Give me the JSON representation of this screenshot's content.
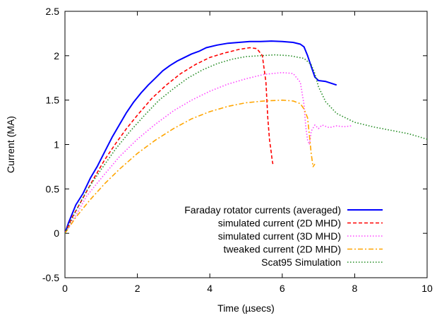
{
  "chart_data": {
    "type": "line",
    "xlabel": "Time (µsecs)",
    "ylabel": "Current (MA)",
    "xlim": [
      0,
      10
    ],
    "ylim": [
      -0.5,
      2.5
    ],
    "xticks": [
      0,
      2,
      4,
      6,
      8,
      10
    ],
    "xtick_labels": [
      "0",
      "2",
      "4",
      "6",
      "8",
      "10"
    ],
    "yticks": [
      -0.5,
      0,
      0.5,
      1,
      1.5,
      2,
      2.5
    ],
    "ytick_labels": [
      "-0.5",
      "0",
      "0.5",
      "1",
      "1.5",
      "2",
      "2.5"
    ],
    "grid": false,
    "legend_position": "lower-right",
    "series": [
      {
        "name": "Faraday rotator currents (averaged)",
        "color": "#0000ff",
        "dash": "solid",
        "x": [
          0.0,
          0.1,
          0.2,
          0.3,
          0.5,
          0.7,
          0.9,
          1.1,
          1.3,
          1.5,
          1.7,
          1.9,
          2.1,
          2.3,
          2.5,
          2.7,
          2.9,
          3.1,
          3.3,
          3.5,
          3.7,
          3.9,
          4.2,
          4.5,
          4.8,
          5.1,
          5.4,
          5.7,
          6.0,
          6.3,
          6.5,
          6.6,
          6.7,
          6.8,
          6.9,
          7.0,
          7.2,
          7.5
        ],
        "y": [
          0.0,
          0.12,
          0.22,
          0.32,
          0.45,
          0.62,
          0.76,
          0.92,
          1.08,
          1.22,
          1.36,
          1.48,
          1.58,
          1.67,
          1.75,
          1.83,
          1.89,
          1.94,
          1.98,
          2.02,
          2.05,
          2.09,
          2.12,
          2.14,
          2.15,
          2.16,
          2.16,
          2.165,
          2.16,
          2.15,
          2.13,
          2.1,
          2.0,
          1.88,
          1.76,
          1.72,
          1.71,
          1.67
        ]
      },
      {
        "name": "simulated current (2D MHD)",
        "color": "#ff0000",
        "dash": "dashed",
        "x": [
          0.0,
          0.2,
          0.5,
          0.8,
          1.1,
          1.4,
          1.7,
          2.0,
          2.4,
          2.8,
          3.2,
          3.6,
          4.0,
          4.4,
          4.8,
          5.1,
          5.3,
          5.45,
          5.55,
          5.6,
          5.65,
          5.7,
          5.72,
          5.74
        ],
        "y": [
          0.0,
          0.18,
          0.4,
          0.62,
          0.83,
          1.01,
          1.18,
          1.33,
          1.52,
          1.67,
          1.8,
          1.9,
          1.98,
          2.03,
          2.07,
          2.09,
          2.08,
          2.0,
          1.7,
          1.3,
          1.05,
          0.9,
          0.83,
          0.78
        ]
      },
      {
        "name": "simulated current (3D MHD)",
        "color": "#ff44ff",
        "dash": "dotted",
        "x": [
          0.0,
          0.3,
          0.6,
          1.0,
          1.5,
          2.0,
          2.5,
          3.0,
          3.5,
          4.0,
          4.5,
          5.0,
          5.5,
          6.0,
          6.3,
          6.5,
          6.6,
          6.65,
          6.7,
          6.75,
          6.8,
          6.9,
          7.0,
          7.1,
          7.3,
          7.5,
          7.7,
          7.9
        ],
        "y": [
          0.0,
          0.2,
          0.42,
          0.62,
          0.86,
          1.06,
          1.23,
          1.38,
          1.5,
          1.6,
          1.68,
          1.74,
          1.79,
          1.81,
          1.8,
          1.7,
          1.45,
          1.2,
          1.05,
          1.0,
          1.15,
          1.22,
          1.18,
          1.22,
          1.19,
          1.21,
          1.2,
          1.21
        ]
      },
      {
        "name": "tweaked   current (2D MHD)",
        "color": "#ffa500",
        "dash": "dashdot",
        "x": [
          0.0,
          0.3,
          0.7,
          1.1,
          1.5,
          2.0,
          2.5,
          3.0,
          3.5,
          4.0,
          4.5,
          5.0,
          5.5,
          6.0,
          6.3,
          6.5,
          6.6,
          6.7,
          6.75,
          6.8,
          6.85,
          6.9
        ],
        "y": [
          0.0,
          0.18,
          0.38,
          0.56,
          0.72,
          0.9,
          1.05,
          1.18,
          1.29,
          1.37,
          1.43,
          1.47,
          1.49,
          1.5,
          1.49,
          1.46,
          1.4,
          1.3,
          1.1,
          0.9,
          0.75,
          0.78
        ]
      },
      {
        "name": "Scat95 Simulation",
        "color": "#228b22",
        "dash": "dotted",
        "x": [
          0.0,
          0.3,
          0.6,
          1.0,
          1.4,
          1.8,
          2.2,
          2.6,
          3.0,
          3.4,
          3.8,
          4.2,
          4.6,
          5.0,
          5.4,
          5.8,
          6.2,
          6.6,
          6.8,
          6.9,
          7.0,
          7.2,
          7.5,
          8.0,
          8.5,
          9.0,
          9.5,
          10.0
        ],
        "y": [
          0.0,
          0.25,
          0.48,
          0.72,
          0.95,
          1.15,
          1.33,
          1.5,
          1.63,
          1.75,
          1.84,
          1.91,
          1.96,
          1.99,
          2.0,
          2.01,
          2.0,
          1.97,
          1.9,
          1.8,
          1.65,
          1.48,
          1.35,
          1.25,
          1.2,
          1.16,
          1.12,
          1.06
        ]
      }
    ]
  }
}
